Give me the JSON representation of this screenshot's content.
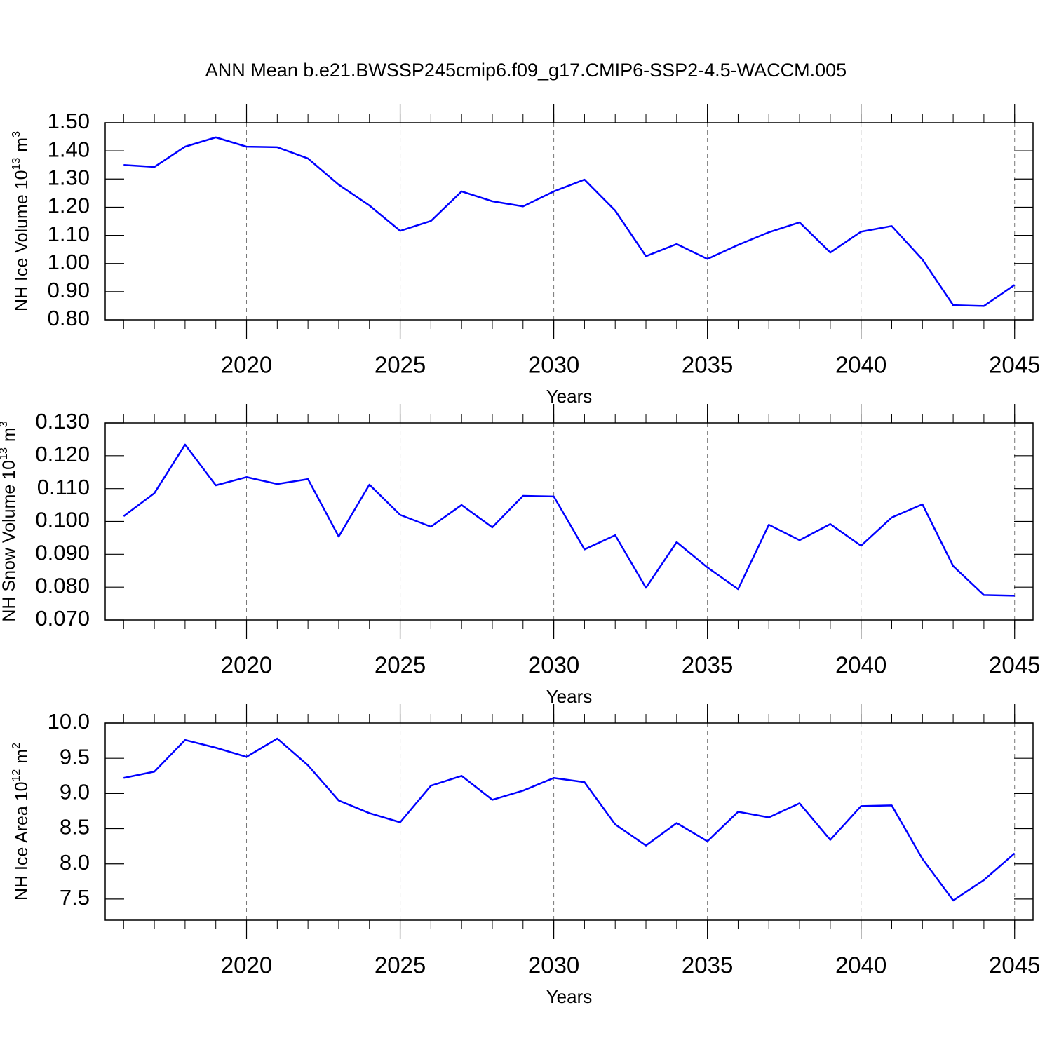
{
  "title": "ANN Mean b.e21.BWSSP245cmip6.f09_g17.CMIP6-SSP2-4.5-WACCM.005",
  "chart_data": [
    {
      "type": "line",
      "x": [
        2016,
        2017,
        2018,
        2019,
        2020,
        2021,
        2022,
        2023,
        2024,
        2025,
        2026,
        2027,
        2028,
        2029,
        2030,
        2031,
        2032,
        2033,
        2034,
        2035,
        2036,
        2037,
        2038,
        2039,
        2040,
        2041,
        2042,
        2043,
        2044,
        2045
      ],
      "values": [
        1.35,
        1.343,
        1.415,
        1.448,
        1.415,
        1.413,
        1.373,
        1.28,
        1.206,
        1.116,
        1.151,
        1.256,
        1.221,
        1.203,
        1.256,
        1.298,
        1.188,
        1.026,
        1.069,
        1.016,
        1.066,
        1.111,
        1.146,
        1.039,
        1.113,
        1.133,
        1.014,
        0.852,
        0.849,
        0.924
      ],
      "color": "#0000ff",
      "xlim": [
        2015.4,
        2045.6
      ],
      "xticks": [
        2020,
        2025,
        2030,
        2035,
        2040,
        2045
      ],
      "ylim": [
        0.8,
        1.5
      ],
      "yticks": [
        {
          "value": 0.8,
          "label": "0.80"
        },
        {
          "value": 0.9,
          "label": "0.90"
        },
        {
          "value": 1.0,
          "label": "1.00"
        },
        {
          "value": 1.1,
          "label": "1.10"
        },
        {
          "value": 1.2,
          "label": "1.20"
        },
        {
          "value": 1.3,
          "label": "1.30"
        },
        {
          "value": 1.4,
          "label": "1.40"
        },
        {
          "value": 1.5,
          "label": "1.50"
        }
      ],
      "xlabel": "Years",
      "ylabel": {
        "text": "NH Ice Volume 10",
        "exponent": "13",
        "unit": "m",
        "unit_exponent": "3"
      },
      "grid": "x"
    },
    {
      "type": "line",
      "x": [
        2016,
        2017,
        2018,
        2019,
        2020,
        2021,
        2022,
        2023,
        2024,
        2025,
        2026,
        2027,
        2028,
        2029,
        2030,
        2031,
        2032,
        2033,
        2034,
        2035,
        2036,
        2037,
        2038,
        2039,
        2040,
        2041,
        2042,
        2043,
        2044,
        2045
      ],
      "values": [
        0.1016,
        0.1086,
        0.1234,
        0.111,
        0.1135,
        0.1114,
        0.1129,
        0.0954,
        0.1112,
        0.102,
        0.0984,
        0.105,
        0.0982,
        0.1078,
        0.1076,
        0.0915,
        0.0958,
        0.0798,
        0.0937,
        0.086,
        0.0794,
        0.099,
        0.0943,
        0.0992,
        0.0926,
        0.1012,
        0.1052,
        0.0864,
        0.0776,
        0.0774
      ],
      "color": "#0000ff",
      "xlim": [
        2015.4,
        2045.6
      ],
      "xticks": [
        2020,
        2025,
        2030,
        2035,
        2040,
        2045
      ],
      "ylim": [
        0.07,
        0.13
      ],
      "yticks": [
        {
          "value": 0.07,
          "label": "0.070"
        },
        {
          "value": 0.08,
          "label": "0.080"
        },
        {
          "value": 0.09,
          "label": "0.090"
        },
        {
          "value": 0.1,
          "label": "0.100"
        },
        {
          "value": 0.11,
          "label": "0.110"
        },
        {
          "value": 0.12,
          "label": "0.120"
        },
        {
          "value": 0.13,
          "label": "0.130"
        }
      ],
      "xlabel": "Years",
      "ylabel": {
        "text": "NH Snow Volume 10",
        "exponent": "13",
        "unit": "m",
        "unit_exponent": "3"
      },
      "grid": "x"
    },
    {
      "type": "line",
      "x": [
        2016,
        2017,
        2018,
        2019,
        2020,
        2021,
        2022,
        2023,
        2024,
        2025,
        2026,
        2027,
        2028,
        2029,
        2030,
        2031,
        2032,
        2033,
        2034,
        2035,
        2036,
        2037,
        2038,
        2039,
        2040,
        2041,
        2042,
        2043,
        2044,
        2045
      ],
      "values": [
        9.22,
        9.31,
        9.76,
        9.65,
        9.52,
        9.78,
        9.4,
        8.9,
        8.72,
        8.59,
        9.11,
        9.25,
        8.91,
        9.04,
        9.22,
        9.16,
        8.56,
        8.26,
        8.58,
        8.32,
        8.74,
        8.66,
        8.86,
        8.34,
        8.82,
        8.83,
        8.07,
        7.48,
        7.77,
        8.15
      ],
      "color": "#0000ff",
      "xlim": [
        2015.4,
        2045.6
      ],
      "xticks": [
        2020,
        2025,
        2030,
        2035,
        2040,
        2045
      ],
      "ylim": [
        7.2,
        10.0
      ],
      "yticks": [
        7.5,
        {
          "value": 8.0,
          "label": "8.0"
        },
        8.5,
        {
          "value": 9.0,
          "label": "9.0"
        },
        9.5,
        {
          "value": 10.0,
          "label": "10.0"
        }
      ],
      "xlabel": "Years",
      "ylabel": {
        "text": "NH Ice Area 10",
        "exponent": "12",
        "unit": "m",
        "unit_exponent": "2"
      },
      "grid": "x"
    }
  ]
}
